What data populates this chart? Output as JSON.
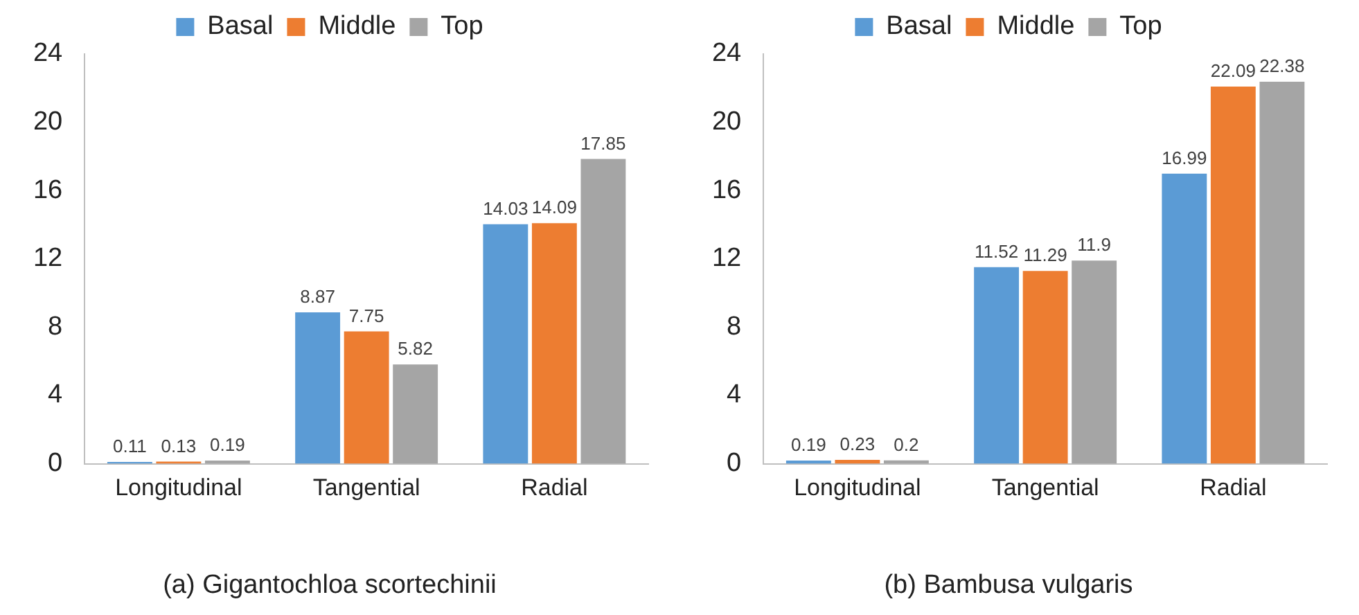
{
  "chart_data": [
    {
      "type": "bar",
      "title": "(a) Gigantochloa scortechinii",
      "categories": [
        "Longitudinal",
        "Tangential",
        "Radial"
      ],
      "series": [
        {
          "name": "Basal",
          "color": "#5b9bd5",
          "values": [
            0.11,
            8.87,
            14.03
          ]
        },
        {
          "name": "Middle",
          "color": "#ed7d31",
          "values": [
            0.13,
            7.75,
            14.09
          ]
        },
        {
          "name": "Top",
          "color": "#a5a5a5",
          "values": [
            0.19,
            5.82,
            17.85
          ]
        }
      ],
      "ylim": [
        0,
        24
      ],
      "yticks": [
        0,
        4,
        8,
        12,
        16,
        20,
        24
      ],
      "grid": false,
      "legend": "top",
      "data_labels": true
    },
    {
      "type": "bar",
      "title": "(b) Bambusa vulgaris",
      "categories": [
        "Longitudinal",
        "Tangential",
        "Radial"
      ],
      "series": [
        {
          "name": "Basal",
          "color": "#5b9bd5",
          "values": [
            0.19,
            11.52,
            16.99
          ]
        },
        {
          "name": "Middle",
          "color": "#ed7d31",
          "values": [
            0.23,
            11.29,
            22.09
          ]
        },
        {
          "name": "Top",
          "color": "#a5a5a5",
          "values": [
            0.2,
            11.9,
            22.38
          ]
        }
      ],
      "ylim": [
        0,
        24
      ],
      "yticks": [
        0,
        4,
        8,
        12,
        16,
        20,
        24
      ],
      "grid": false,
      "legend": "top",
      "data_labels": true
    }
  ]
}
